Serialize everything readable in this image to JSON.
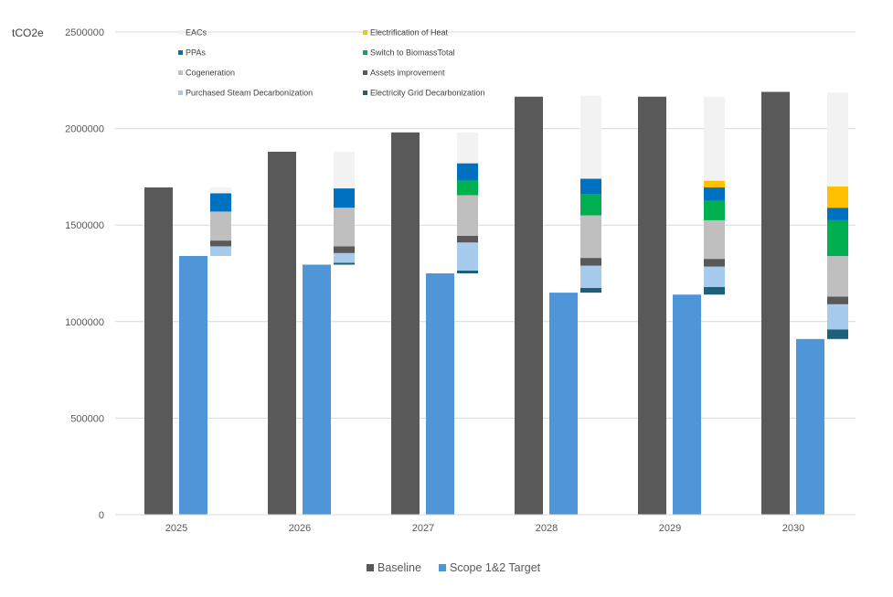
{
  "chart_data": {
    "type": "bar",
    "ylabel": "tCO2e",
    "ylim": [
      0,
      2500000
    ],
    "yticks": [
      "0",
      "500000",
      "1000000",
      "1500000",
      "2000000",
      "2500000"
    ],
    "categories": [
      "2025",
      "2026",
      "2027",
      "2028",
      "2029",
      "2030"
    ],
    "grid": "horizontal",
    "series": [
      {
        "name": "Baseline",
        "color": "#595959",
        "values": [
          1695000,
          1880000,
          1980000,
          2165000,
          2165000,
          2190000
        ]
      },
      {
        "name": "Scope 1&2 Target",
        "color": "#4f96d9",
        "values": [
          1340000,
          1295000,
          1250000,
          1150000,
          1140000,
          910000
        ]
      }
    ],
    "waterfall": {
      "order": [
        "Electricity Grid Decarbonization",
        "Purchased Steam Decarbonization",
        "Assets improvement",
        "Cogeneration",
        "Switch to BiomassTotal",
        "PPAs",
        "Electrification of Heat",
        "EACs"
      ],
      "colors": {
        "EACs": "#f2f2f2",
        "Electrification of Heat": "#ffc000",
        "PPAs": "#0070c0",
        "Switch to BiomassTotal": "#00b050",
        "Cogeneration": "#bfbfbf",
        "Assets improvement": "#595959",
        "Purchased Steam Decarbonization": "#a6cbec",
        "Electricity Grid Decarbonization": "#1f5f7a"
      },
      "values": [
        [
          0,
          50000,
          30000,
          150000,
          0,
          95000,
          0,
          30000
        ],
        [
          10000,
          50000,
          35000,
          200000,
          0,
          100000,
          0,
          190000
        ],
        [
          15000,
          145000,
          35000,
          210000,
          75000,
          90000,
          0,
          160000
        ],
        [
          25000,
          115000,
          40000,
          220000,
          110000,
          80000,
          0,
          430000
        ],
        [
          40000,
          105000,
          40000,
          200000,
          100000,
          70000,
          35000,
          435000
        ],
        [
          50000,
          130000,
          40000,
          210000,
          185000,
          65000,
          110000,
          485000
        ]
      ]
    },
    "legend": {
      "position": "top",
      "items": [
        "EACs",
        "Electrification of Heat",
        "PPAs",
        "Switch to BiomassTotal",
        "Cogeneration",
        "Assets improvement",
        "Purchased Steam Decarbonization",
        "Electricity Grid Decarbonization"
      ],
      "bottom_items": [
        "Baseline",
        "Scope 1&2 Target"
      ]
    }
  }
}
